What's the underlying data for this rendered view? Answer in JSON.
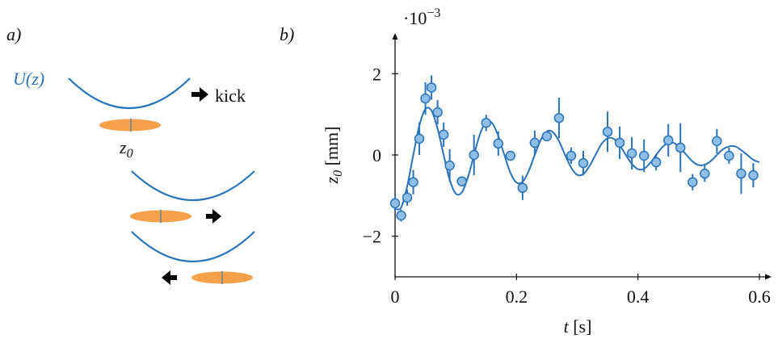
{
  "diagram": {
    "panel_label": "a)",
    "potential_label": "U(z)",
    "kick_label": "kick",
    "position_label": {
      "var": "z",
      "sub": "0"
    }
  },
  "chart_data": {
    "type": "scatter",
    "panel_label": "b)",
    "xlabel": {
      "var": "t",
      "unit": "[s]"
    },
    "ylabel": {
      "var": "z",
      "sub": "0",
      "unit": "[mm]"
    },
    "scale_label": {
      "base": "·10",
      "exponent": "−3"
    },
    "xlim": [
      0,
      0.62
    ],
    "ylim": [
      -3,
      3
    ],
    "xticks": [
      0,
      0.2,
      0.4,
      0.6
    ],
    "yticks": [
      {
        "value": -2,
        "label": "−2"
      },
      0,
      2
    ],
    "series": [
      {
        "type": "line",
        "color": "#2a73b8",
        "x": [
          0,
          0.01,
          0.02,
          0.03,
          0.04,
          0.05,
          0.06,
          0.07,
          0.08,
          0.09,
          0.1,
          0.11,
          0.12,
          0.13,
          0.14,
          0.15,
          0.16,
          0.17,
          0.18,
          0.19,
          0.2,
          0.21,
          0.22,
          0.23,
          0.24,
          0.25,
          0.26,
          0.27,
          0.28,
          0.29,
          0.3,
          0.31,
          0.32,
          0.33,
          0.34,
          0.35,
          0.36,
          0.37,
          0.38,
          0.39,
          0.4,
          0.41,
          0.42,
          0.43,
          0.44,
          0.45,
          0.46,
          0.47,
          0.48,
          0.49,
          0.5,
          0.51,
          0.52,
          0.53,
          0.54,
          0.55,
          0.56,
          0.57,
          0.58,
          0.59,
          0.6
        ],
        "values": [
          -1.33,
          -1.29,
          -0.77,
          0,
          0.72,
          1.13,
          1.09,
          0.65,
          0,
          -0.61,
          -0.95,
          -0.92,
          -0.55,
          0,
          0.52,
          0.81,
          0.78,
          0.47,
          0,
          -0.44,
          -0.68,
          -0.66,
          -0.4,
          0,
          0.37,
          0.58,
          0.56,
          0.34,
          0,
          -0.31,
          -0.49,
          -0.47,
          -0.28,
          0,
          0.27,
          0.41,
          0.4,
          0.24,
          0,
          -0.22,
          -0.35,
          -0.34,
          -0.2,
          0,
          0.19,
          0.3,
          0.29,
          0.17,
          0,
          -0.16,
          -0.25,
          -0.24,
          -0.15,
          0,
          0.14,
          0.21,
          0.21,
          0.12,
          0,
          -0.12,
          -0.18
        ]
      },
      {
        "type": "scatter",
        "color": "#8fbfe6",
        "edge_color": "#2a73b8",
        "x": [
          0,
          0.01,
          0.02,
          0.03,
          0.04,
          0.05,
          0.06,
          0.07,
          0.08,
          0.09,
          0.11,
          0.13,
          0.15,
          0.17,
          0.19,
          0.21,
          0.23,
          0.25,
          0.27,
          0.29,
          0.31,
          0.35,
          0.37,
          0.39,
          0.41,
          0.43,
          0.45,
          0.47,
          0.49,
          0.51,
          0.53,
          0.55,
          0.57,
          0.59
        ],
        "values": [
          -1.19,
          -1.49,
          -1.05,
          -0.67,
          0.4,
          1.39,
          1.66,
          1.05,
          0.5,
          -0.26,
          -0.65,
          0,
          0.79,
          0.28,
          -0.02,
          -0.81,
          0.3,
          0.46,
          0.91,
          -0.02,
          -0.2,
          0.57,
          0.3,
          0.04,
          -0.02,
          -0.18,
          0.36,
          0.18,
          -0.67,
          -0.46,
          0.34,
          -0.02,
          -0.46,
          -0.5
        ],
        "errors": [
          0.2,
          0.15,
          0.2,
          0.3,
          0.4,
          0.4,
          0.3,
          0.3,
          0.3,
          0.4,
          0.1,
          0.5,
          0.2,
          0.3,
          0.1,
          0.3,
          0.3,
          0.1,
          0.5,
          0.2,
          0.3,
          0.5,
          0.4,
          0.4,
          0.4,
          0.2,
          0.4,
          0.6,
          0.2,
          0.2,
          0.3,
          0.2,
          0.5,
          0.3
        ]
      }
    ]
  }
}
